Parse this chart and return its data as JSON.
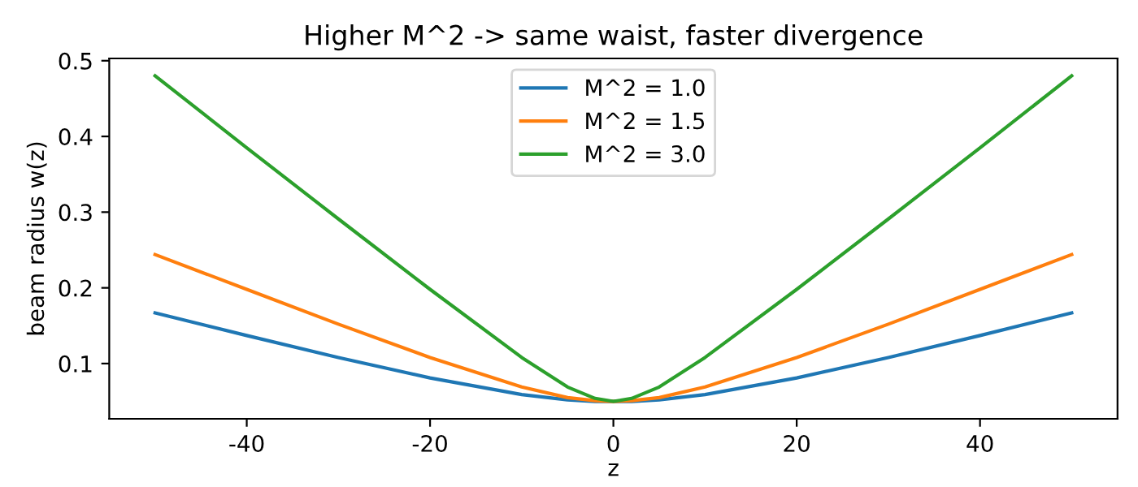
{
  "chart_data": {
    "type": "line",
    "title": "Higher M^2 -> same waist, faster divergence",
    "xlabel": "z",
    "ylabel": "beam radius w(z)",
    "x": [
      -50,
      -40,
      -30,
      -20,
      -10,
      -5,
      -2,
      0,
      2,
      5,
      10,
      20,
      30,
      40,
      50
    ],
    "series": [
      {
        "name": "M^2 = 1.0",
        "color": "#1f77b4",
        "values": [
          0.167,
          0.137,
          0.108,
          0.081,
          0.059,
          0.052,
          0.05,
          0.05,
          0.05,
          0.052,
          0.059,
          0.081,
          0.108,
          0.137,
          0.167
        ]
      },
      {
        "name": "M^2 = 1.5",
        "color": "#ff7f0e",
        "values": [
          0.244,
          0.198,
          0.152,
          0.108,
          0.069,
          0.055,
          0.051,
          0.05,
          0.051,
          0.055,
          0.069,
          0.108,
          0.152,
          0.198,
          0.244
        ]
      },
      {
        "name": "M^2 = 3.0",
        "color": "#2ca02c",
        "values": [
          0.48,
          0.385,
          0.291,
          0.198,
          0.108,
          0.069,
          0.054,
          0.05,
          0.054,
          0.069,
          0.108,
          0.198,
          0.291,
          0.385,
          0.48
        ]
      }
    ],
    "xlim": [
      -55,
      55
    ],
    "ylim": [
      0.027,
      0.503
    ],
    "xticks": [
      -40,
      -20,
      0,
      20,
      40
    ],
    "yticks": [
      0.1,
      0.2,
      0.3,
      0.4,
      0.5
    ],
    "legend": "top",
    "grid": false,
    "marker": "none",
    "line_style": "solid"
  }
}
